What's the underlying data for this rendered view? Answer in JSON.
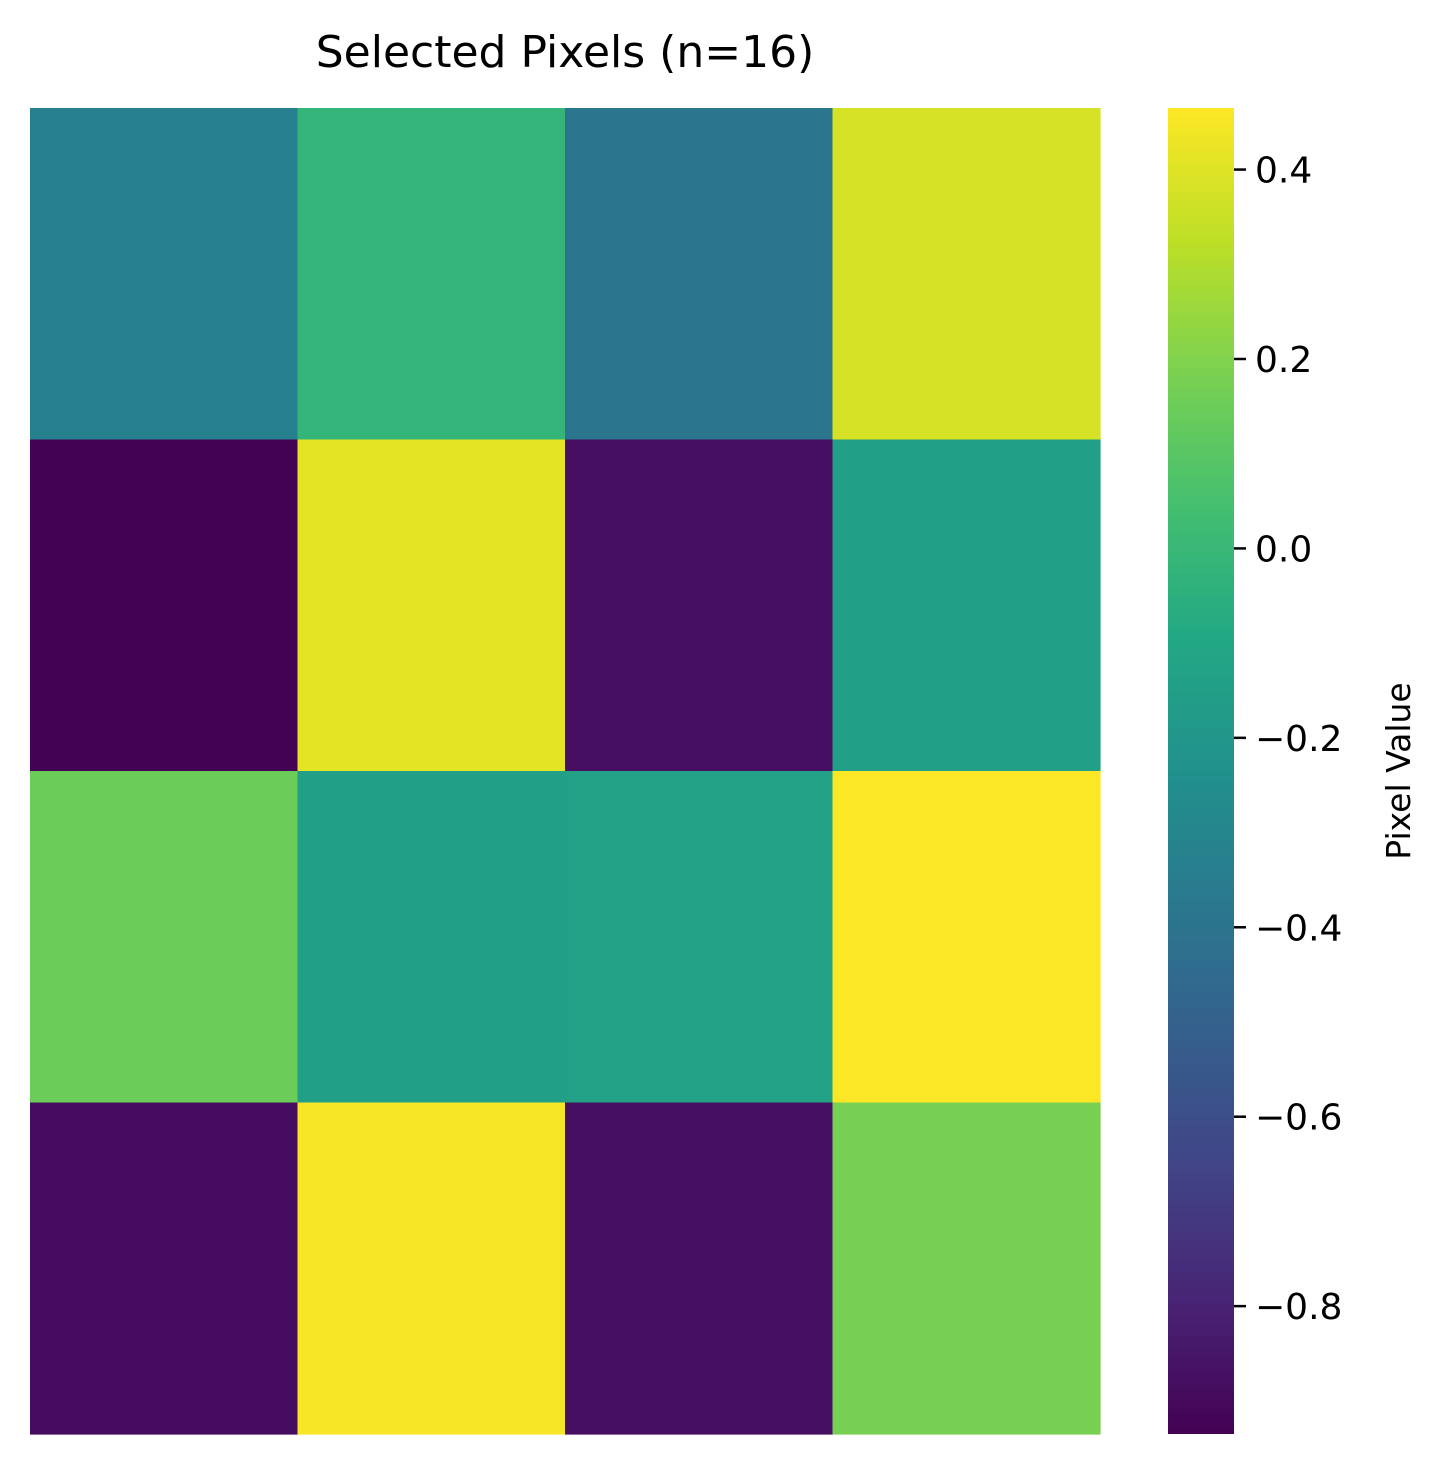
{
  "chart_data": {
    "type": "heatmap",
    "title": "Selected Pixels (n=16)",
    "colormap": "viridis",
    "rows": 4,
    "cols": 4,
    "values": [
      [
        -0.33,
        -0.02,
        -0.39,
        0.38
      ],
      [
        -0.93,
        0.41,
        -0.88,
        -0.15
      ],
      [
        0.15,
        -0.15,
        -0.14,
        0.46
      ],
      [
        -0.89,
        0.45,
        -0.88,
        0.18
      ]
    ],
    "colorbar": {
      "label": "Pixel Value",
      "min": -0.935,
      "max": 0.465,
      "ticks": [
        0.4,
        0.2,
        0.0,
        -0.2,
        -0.4,
        -0.6,
        -0.8
      ],
      "tick_labels": [
        "0.4",
        "0.2",
        "0.0",
        "−0.2",
        "−0.4",
        "−0.6",
        "−0.8"
      ]
    },
    "xlabel": "",
    "ylabel": "",
    "grid": false
  }
}
